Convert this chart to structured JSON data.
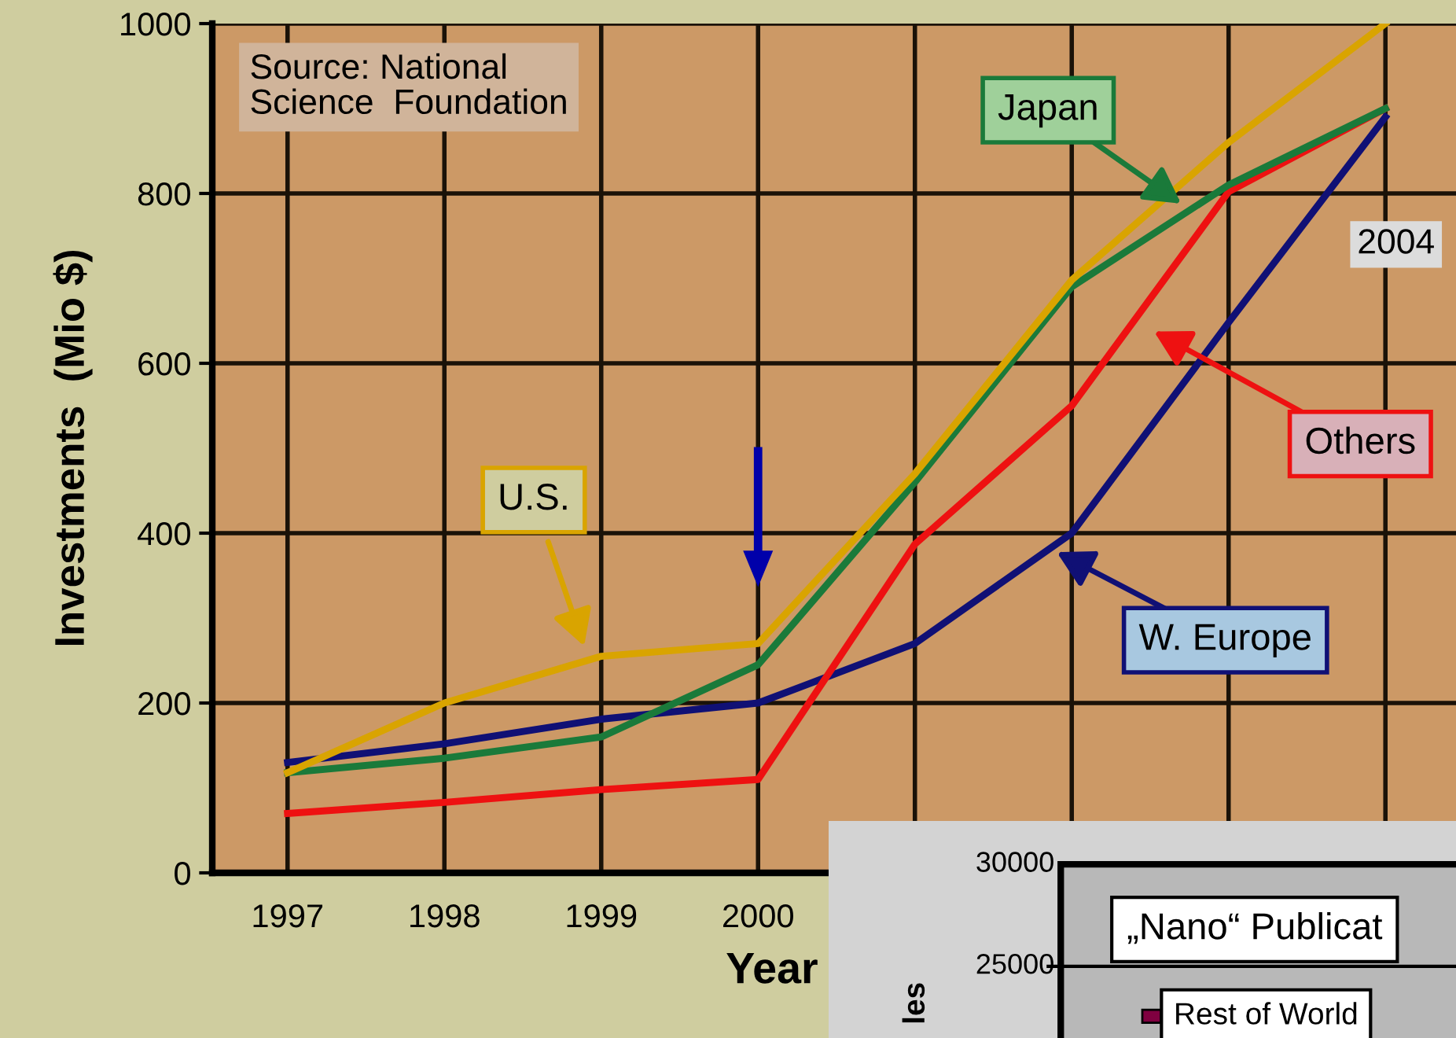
{
  "chart_data": [
    {
      "type": "line",
      "xlabel": "Year",
      "ylabel": "Investments  (Mio $)",
      "categories": [
        "1997",
        "1998",
        "1999",
        "2000",
        null,
        null,
        null,
        null
      ],
      "series": [
        {
          "name": "U.S.",
          "color": "#d9a400",
          "values": [
            118,
            200,
            255,
            270,
            470,
            698,
            860,
            1000
          ]
        },
        {
          "name": "Japan",
          "color": "#1a7a3a",
          "values": [
            118,
            135,
            160,
            245,
            460,
            690,
            810,
            900
          ]
        },
        {
          "name": "Others",
          "color": "#ee1111",
          "values": [
            70,
            83,
            98,
            110,
            387,
            550,
            802,
            900
          ]
        },
        {
          "name": "W. Europe",
          "color": "#101075",
          "values": [
            130,
            152,
            181,
            200,
            270,
            400,
            648,
            890
          ]
        }
      ],
      "ylim": [
        0,
        1000
      ],
      "yticks": [
        0,
        200,
        400,
        600,
        800,
        1000
      ],
      "grid": true,
      "marker": "none",
      "line_style": "solid",
      "annotations": [
        "Source: National\nScience  Foundation",
        "2004"
      ]
    },
    {
      "type": "other",
      "annotations": [
        "30000",
        "25000",
        "„Nano“ Publicat",
        "Rest of World",
        "les"
      ]
    }
  ]
}
